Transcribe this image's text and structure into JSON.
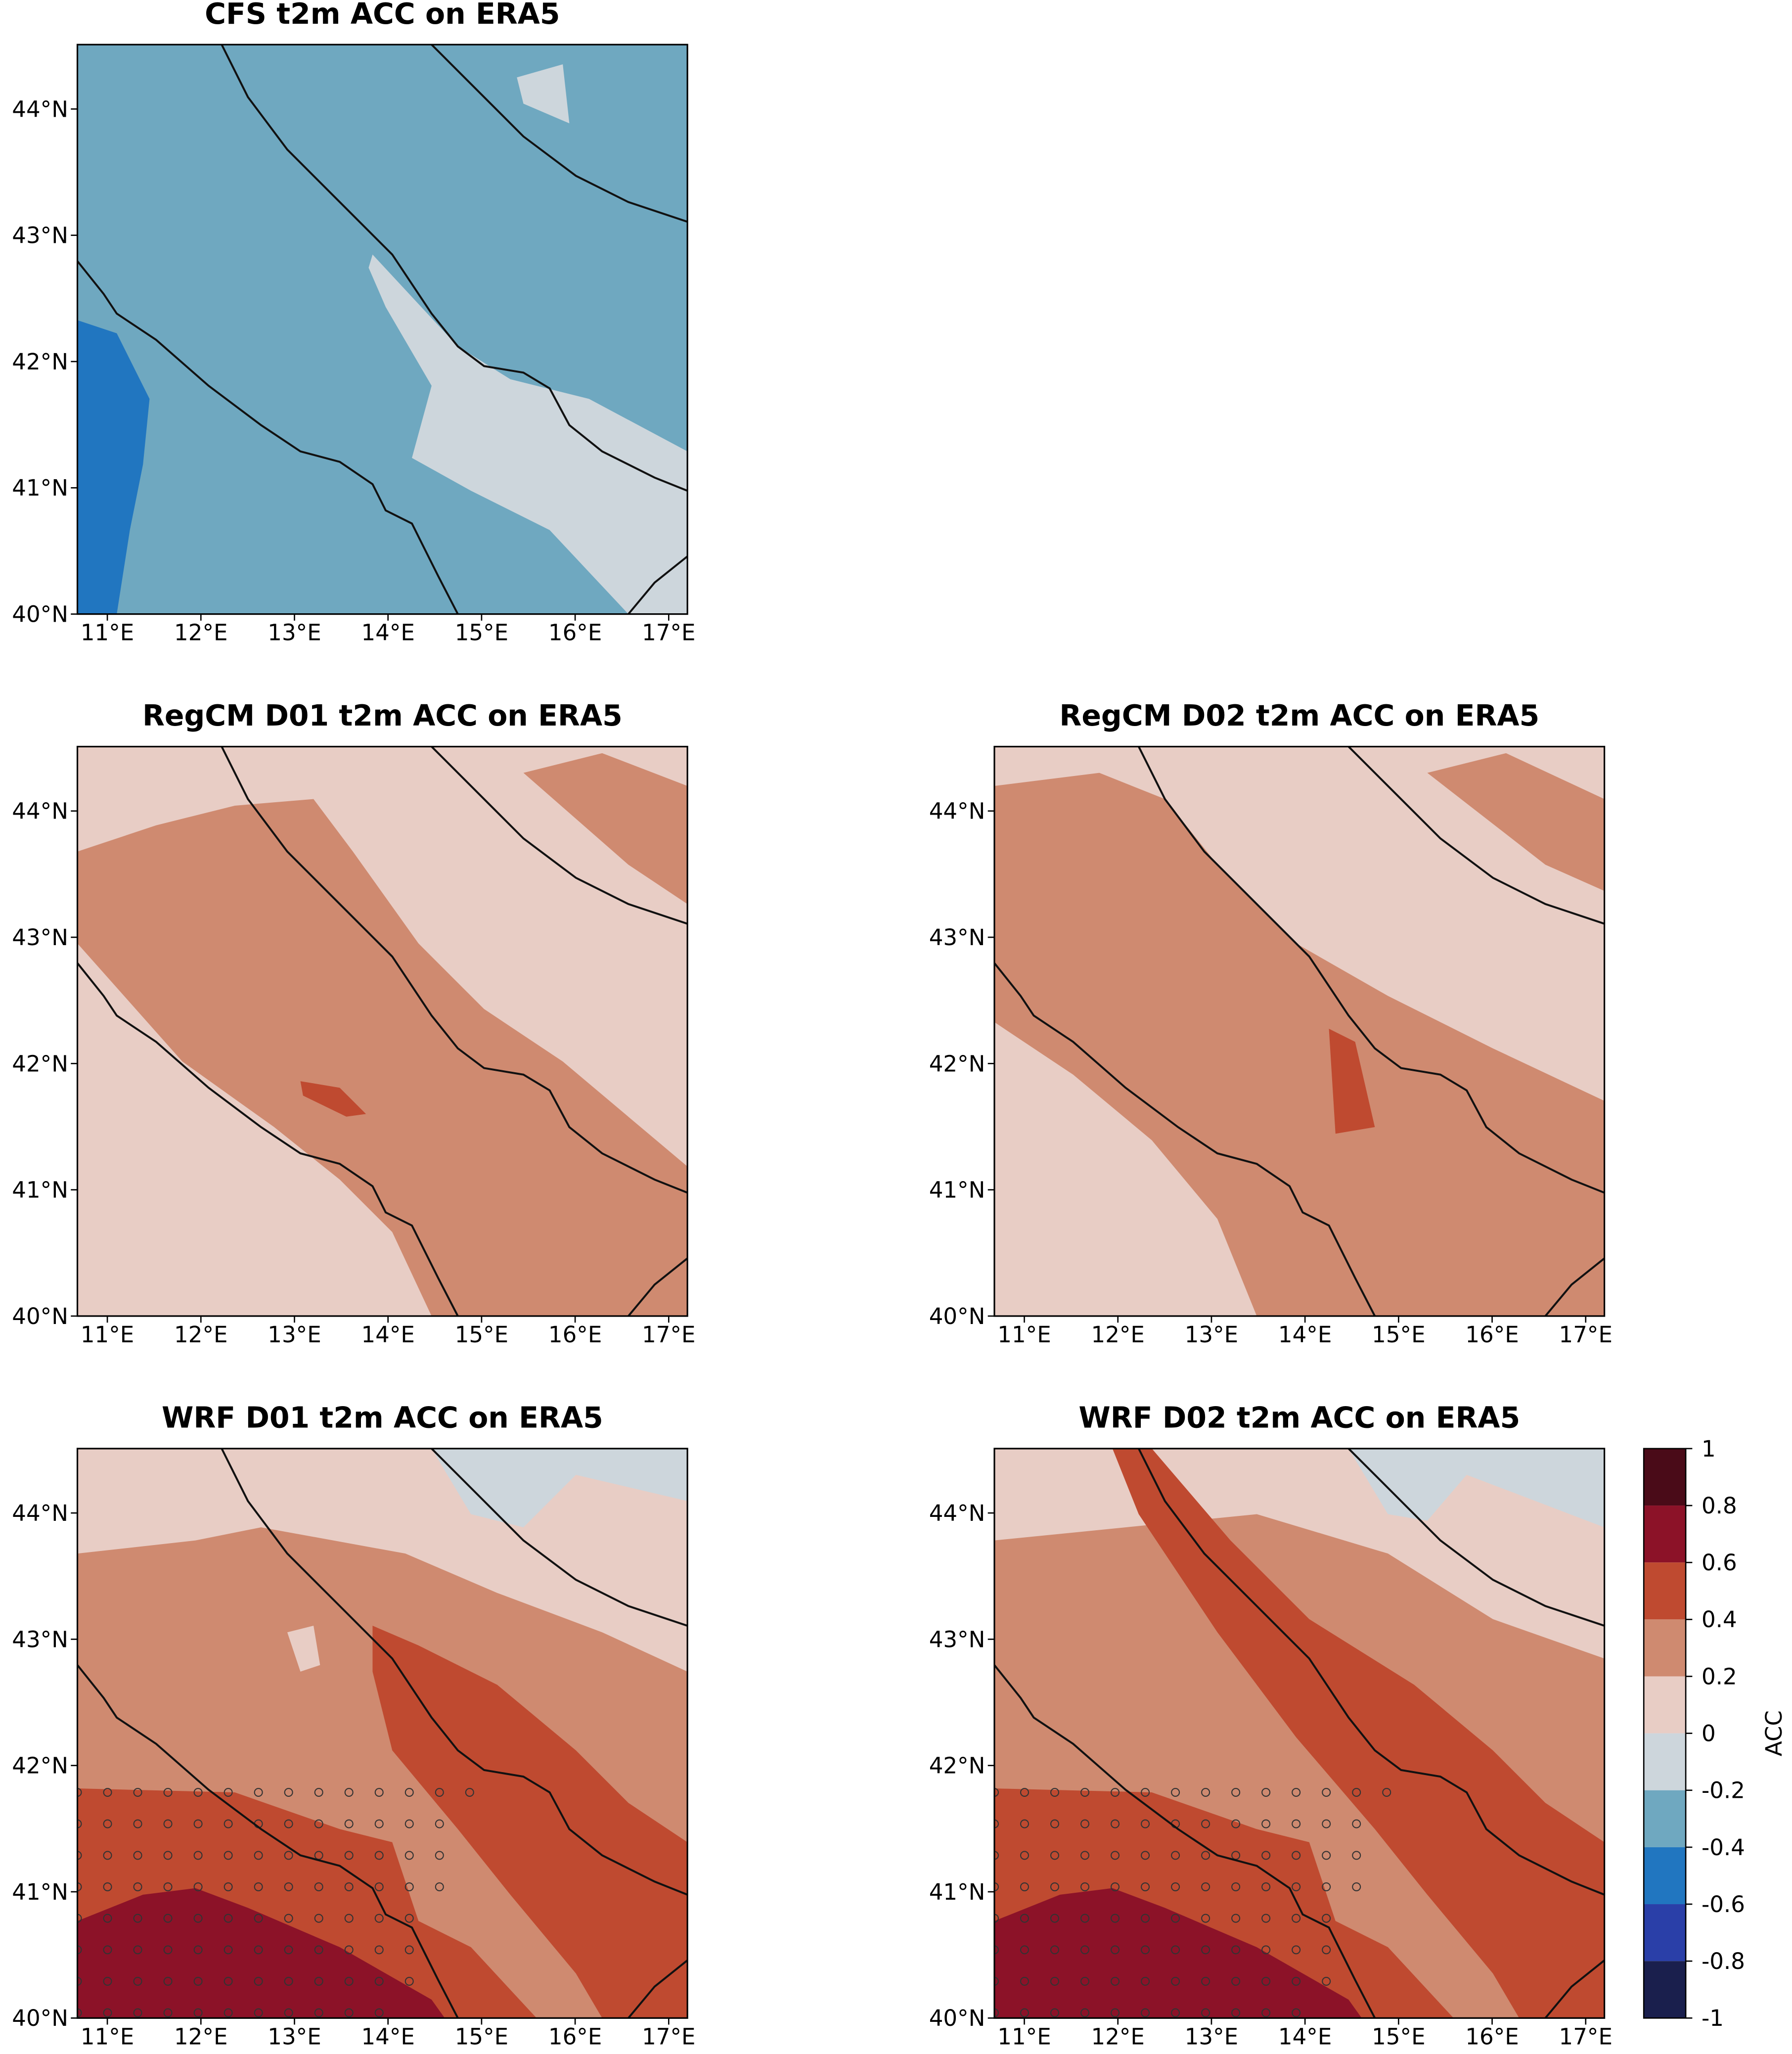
{
  "map_axes": {
    "xlim": [
      10.68,
      17.2
    ],
    "ylim": [
      40,
      44.51
    ],
    "xticks": [
      {
        "value": 11,
        "label": "11°E"
      },
      {
        "value": 12,
        "label": "12°E"
      },
      {
        "value": 13,
        "label": "13°E"
      },
      {
        "value": 14,
        "label": "14°E"
      },
      {
        "value": 15,
        "label": "15°E"
      },
      {
        "value": 16,
        "label": "16°E"
      },
      {
        "value": 17,
        "label": "17°E"
      }
    ],
    "yticks": [
      {
        "value": 40,
        "label": "40°N"
      },
      {
        "value": 41,
        "label": "41°N"
      },
      {
        "value": 42,
        "label": "42°N"
      },
      {
        "value": 43,
        "label": "43°N"
      },
      {
        "value": 44,
        "label": "44°N"
      }
    ]
  },
  "panels": [
    {
      "title": "CFS t2m ACC on ERA5"
    },
    {
      "title": "RegCM D01 t2m ACC on ERA5"
    },
    {
      "title": "RegCM D02 t2m ACC on ERA5"
    },
    {
      "title": "WRF D01 t2m ACC on ERA5"
    },
    {
      "title": "WRF D02 t2m ACC on ERA5"
    }
  ],
  "colorbar": {
    "label": "ACC",
    "lim": [
      -1,
      1
    ],
    "ticks": [
      1,
      0.8,
      0.6,
      0.4,
      0.2,
      0,
      -0.2,
      -0.4,
      -0.6,
      -0.8,
      -1
    ],
    "colors": [
      "#4a0b18",
      "#8c1228",
      "#bf4a30",
      "#cf8a70",
      "#e8cdc5",
      "#cdd6dc",
      "#6fa8c0",
      "#2176c0",
      "#2a3fa8",
      "#1a1f4d"
    ]
  }
}
